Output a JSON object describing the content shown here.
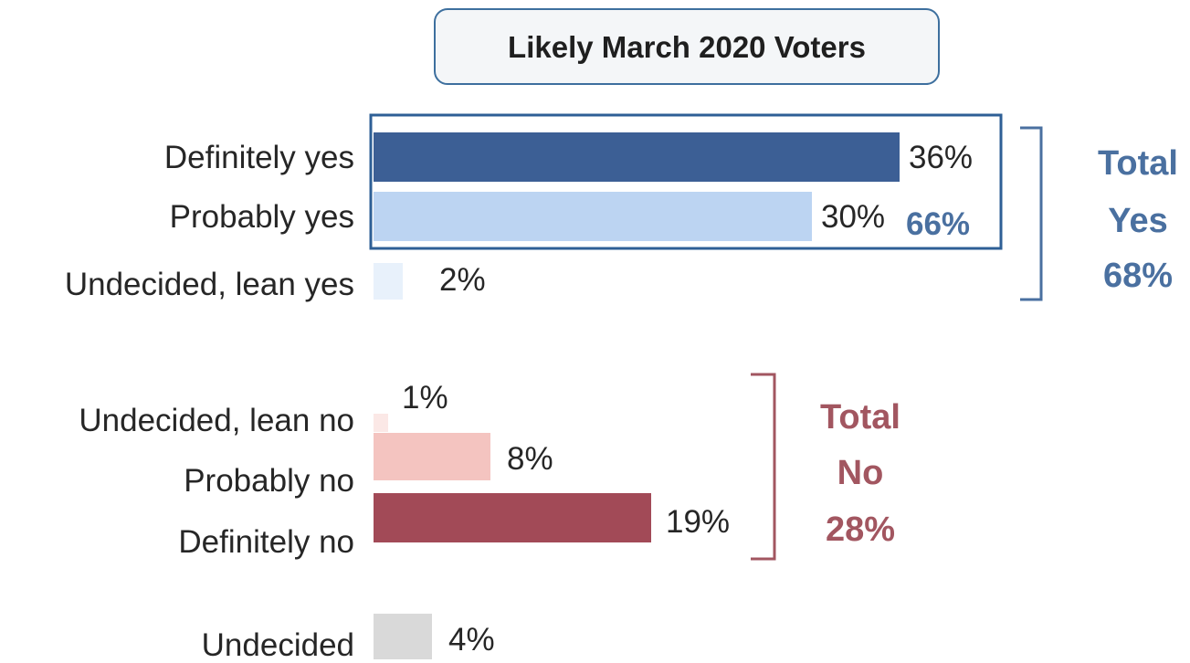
{
  "chart_data": {
    "type": "bar",
    "orientation": "horizontal",
    "title": "Likely March 2020 Voters",
    "categories": [
      "Definitely yes",
      "Probably yes",
      "Undecided, lean yes",
      "Undecided, lean no",
      "Probably no",
      "Definitely no",
      "Undecided"
    ],
    "values": [
      36,
      30,
      2,
      1,
      8,
      19,
      4
    ],
    "value_labels": [
      "36%",
      "30%",
      "2%",
      "1%",
      "8%",
      "19%",
      "4%"
    ],
    "bar_colors": [
      "#3c5f95",
      "#bcd4f2",
      "#e8f1fb",
      "#fbe8e6",
      "#f4c4c0",
      "#a24a57",
      "#d9d9d9"
    ],
    "xlim": [
      0,
      36
    ],
    "grid": false,
    "annotations": {
      "yes_subtotal": "66%",
      "total_yes": [
        "Total",
        "Yes",
        "68%"
      ],
      "total_no": [
        "Total",
        "No",
        "28%"
      ]
    },
    "colors": {
      "yes_accent": "#4a70a0",
      "no_accent": "#a25660",
      "box_border": "#2e5f96"
    }
  }
}
